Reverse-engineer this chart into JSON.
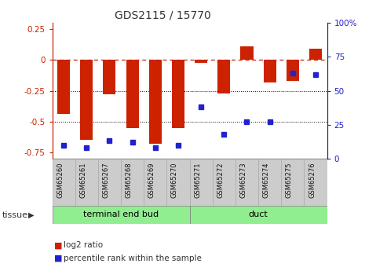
{
  "title": "GDS2115 / 15770",
  "samples": [
    "GSM65260",
    "GSM65261",
    "GSM65267",
    "GSM65268",
    "GSM65269",
    "GSM65270",
    "GSM65271",
    "GSM65272",
    "GSM65273",
    "GSM65274",
    "GSM65275",
    "GSM65276"
  ],
  "log2_ratio": [
    -0.44,
    -0.65,
    -0.28,
    -0.55,
    -0.68,
    -0.55,
    -0.02,
    -0.27,
    0.11,
    -0.18,
    -0.17,
    0.09
  ],
  "percentile": [
    10,
    8,
    13,
    12,
    8,
    10,
    38,
    18,
    27,
    27,
    63,
    62
  ],
  "bar_color": "#CC2200",
  "dot_color": "#2222CC",
  "ylim_left": [
    -0.8,
    0.3
  ],
  "ylim_right": [
    0,
    100
  ],
  "yticks_left": [
    0.25,
    0.0,
    -0.25,
    -0.5,
    -0.75
  ],
  "yticks_right": [
    100,
    75,
    50,
    25,
    0
  ],
  "background_color": "#ffffff",
  "tissue_groups": [
    {
      "label": "terminal end bud",
      "start": 0,
      "end": 6
    },
    {
      "label": "duct",
      "start": 6,
      "end": 12
    }
  ],
  "tissue_color": "#90EE90"
}
